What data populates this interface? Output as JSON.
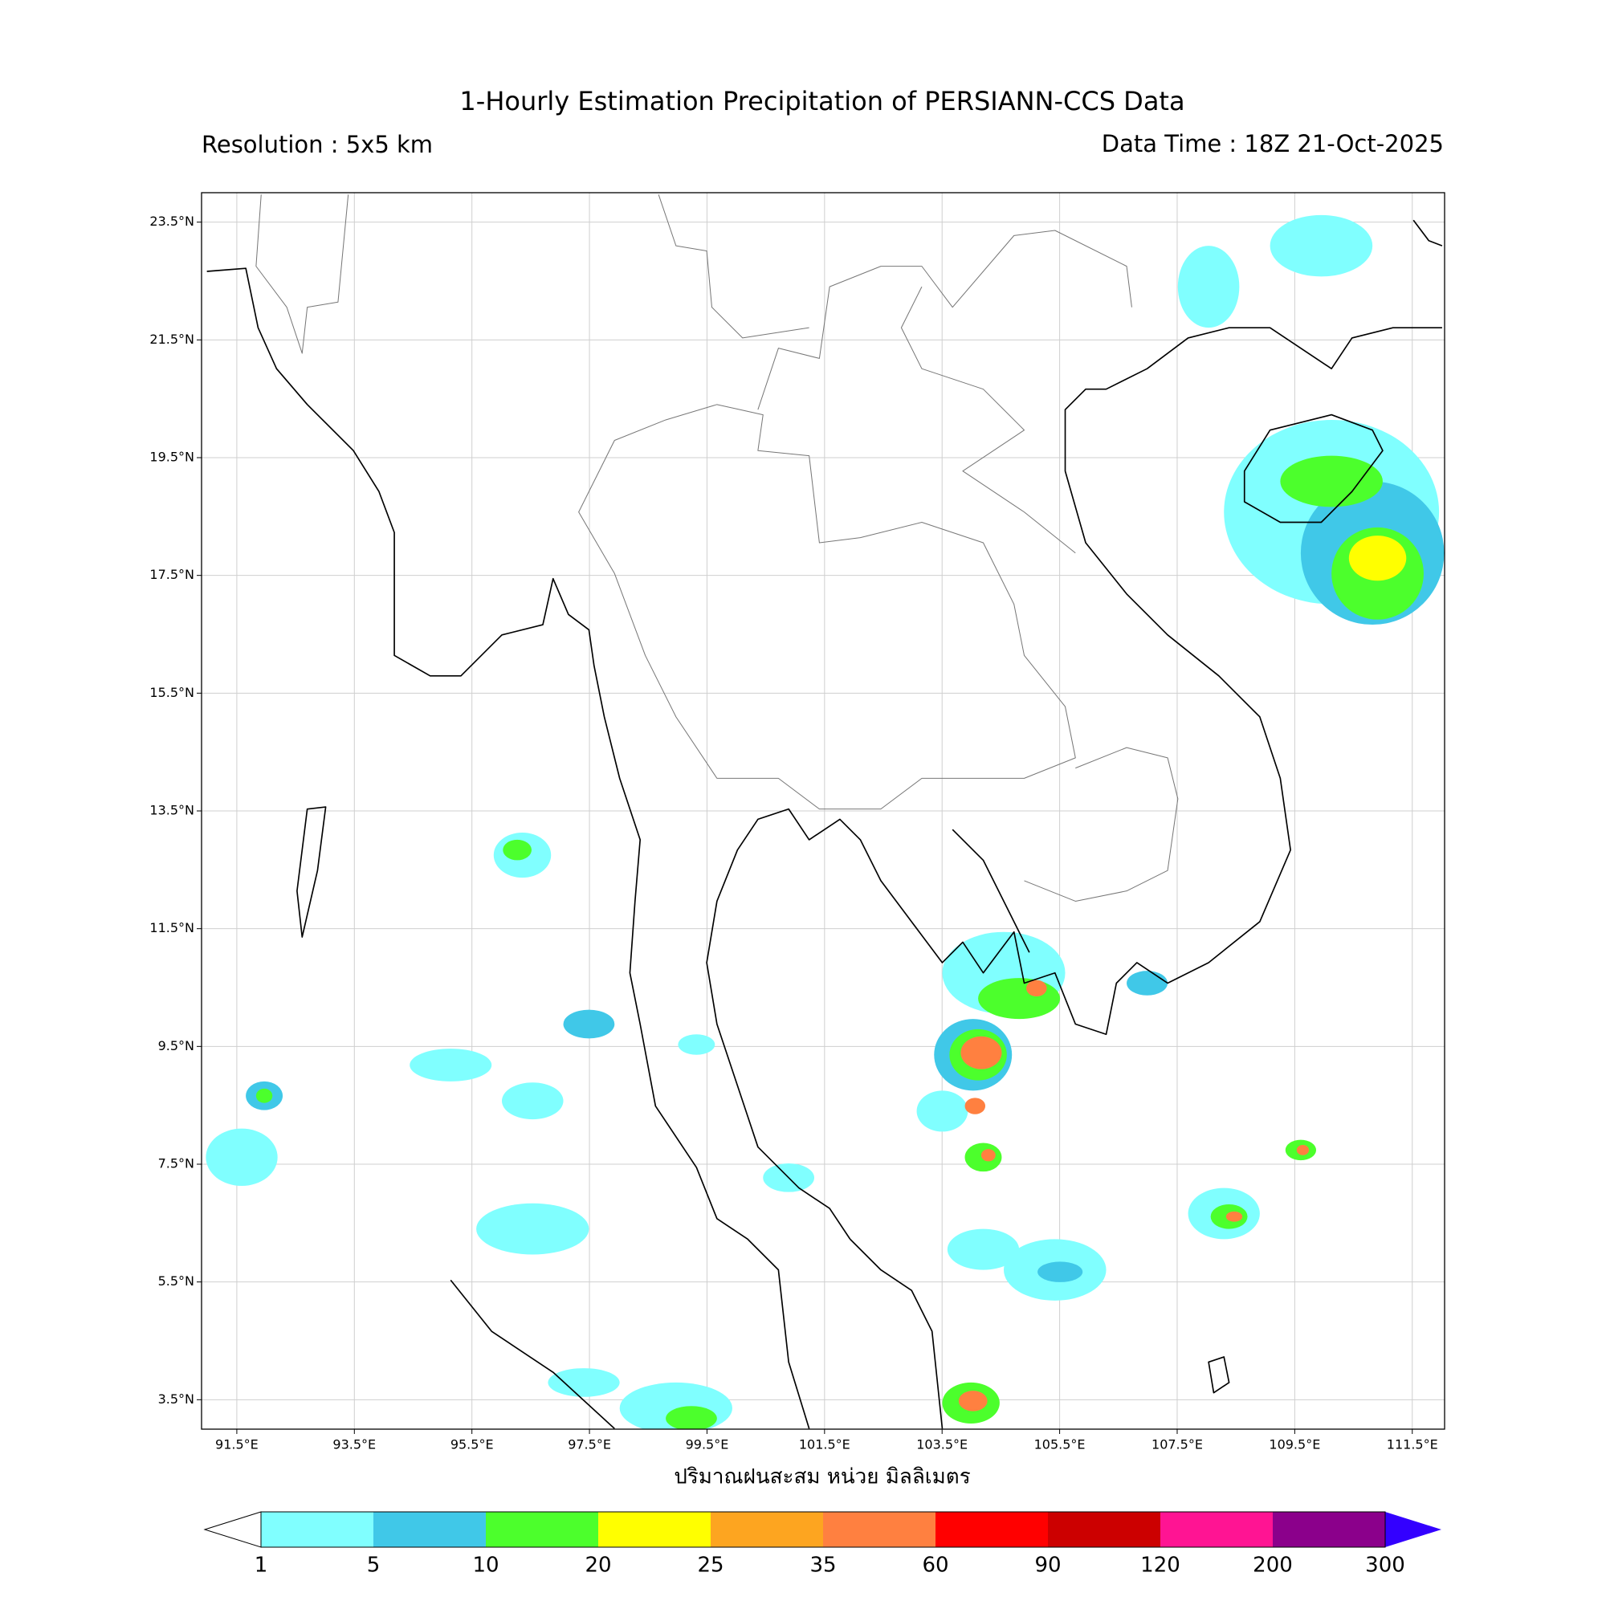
{
  "title": "1-Hourly Estimation Precipitation of PERSIANN-CCS Data",
  "resolution": "Resolution : 5x5 km",
  "data_time": "Data Time : 18Z 21-Oct-2025",
  "map": {
    "lon_range": [
      90.9,
      112.05
    ],
    "lat_range": [
      3,
      24
    ],
    "lon_ticks": [
      {
        "value": 91.5,
        "label": "91.5°E"
      },
      {
        "value": 93.5,
        "label": "93.5°E"
      },
      {
        "value": 95.5,
        "label": "95.5°E"
      },
      {
        "value": 97.5,
        "label": "97.5°E"
      },
      {
        "value": 99.5,
        "label": "99.5°E"
      },
      {
        "value": 101.5,
        "label": "101.5°E"
      },
      {
        "value": 103.5,
        "label": "103.5°E"
      },
      {
        "value": 105.5,
        "label": "105.5°E"
      },
      {
        "value": 107.5,
        "label": "107.5°E"
      },
      {
        "value": 109.5,
        "label": "109.5°E"
      },
      {
        "value": 111.5,
        "label": "111.5°E"
      }
    ],
    "lat_ticks": [
      {
        "value": 3.5,
        "label": "3.5°N"
      },
      {
        "value": 5.5,
        "label": "5.5°N"
      },
      {
        "value": 7.5,
        "label": "7.5°N"
      },
      {
        "value": 9.5,
        "label": "9.5°N"
      },
      {
        "value": 11.5,
        "label": "11.5°N"
      },
      {
        "value": 13.5,
        "label": "13.5°N"
      },
      {
        "value": 15.5,
        "label": "15.5°N"
      },
      {
        "value": 17.5,
        "label": "17.5°N"
      },
      {
        "value": 19.5,
        "label": "19.5°N"
      },
      {
        "value": 21.5,
        "label": "21.5°N"
      },
      {
        "value": 23.5,
        "label": "23.5°N"
      }
    ],
    "grid": true
  },
  "colorbar": {
    "label": "ปริมาณฝนสะสม หน่วย มิลลิเมตร",
    "levels": [
      1,
      5,
      10,
      20,
      25,
      35,
      60,
      90,
      120,
      200,
      300
    ],
    "colors": [
      "#80ffff",
      "#40c8e8",
      "#4cff2c",
      "#ffff00",
      "#fda520",
      "#ff8040",
      "#ff0000",
      "#cc0000",
      "#ff1493",
      "#8b008b"
    ],
    "under_color": "#ffffff",
    "over_color": "#3300ff"
  }
}
